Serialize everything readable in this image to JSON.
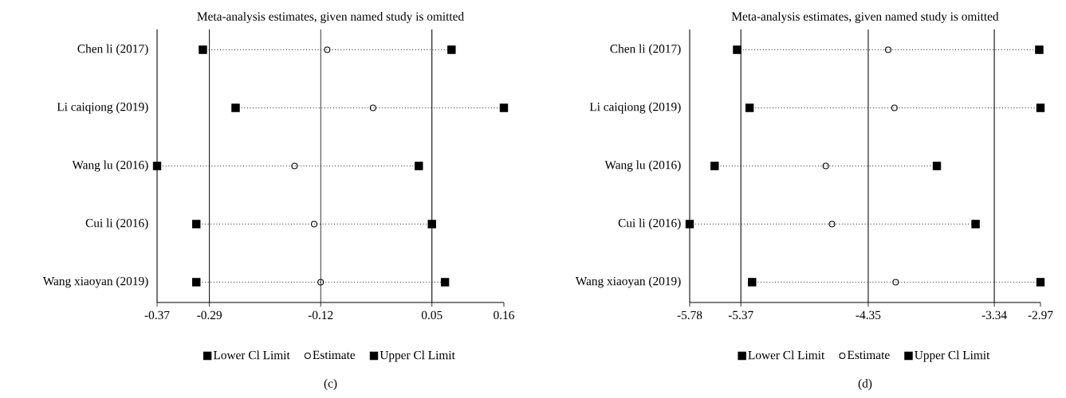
{
  "chart_data": [
    {
      "type": "scatter",
      "orientation": "horizontal",
      "title": "Meta-analysis estimates, given named study is omitted",
      "categories": [
        "Chen li (2017)",
        "Li caiqiong (2019)",
        "Wang lu (2016)",
        "Cui li (2016)",
        "Wang xiaoyan (2019)"
      ],
      "series": [
        {
          "name": "Lower Cl Limit",
          "color": "#000000",
          "values": [
            -0.3,
            -0.25,
            -0.37,
            -0.31,
            -0.31
          ]
        },
        {
          "name": "Estimate",
          "color": "#000000",
          "marker": "circle",
          "values": [
            -0.11,
            -0.04,
            -0.16,
            -0.13,
            -0.12
          ]
        },
        {
          "name": "Upper Cl Limit",
          "color": "#000000",
          "values": [
            0.08,
            0.16,
            0.03,
            0.05,
            0.07
          ]
        }
      ],
      "line_style": "dotted",
      "xlim": [
        -0.37,
        0.16
      ],
      "xticks": [
        -0.37,
        -0.29,
        -0.12,
        0.05,
        0.16
      ],
      "ref_lines": [
        {
          "axis": "x",
          "value": -0.29,
          "color": "#000000"
        },
        {
          "axis": "x",
          "value": -0.12,
          "color": "#000000"
        },
        {
          "axis": "x",
          "value": 0.05,
          "color": "#000000"
        }
      ],
      "legend": "bottom",
      "annotations": [
        "(c)"
      ]
    },
    {
      "type": "scatter",
      "orientation": "horizontal",
      "title": "Meta-analysis estimates, given named study is omitted",
      "categories": [
        "Chen li (2017)",
        "Li caiqiong (2019)",
        "Wang lu (2016)",
        "Cui li (2016)",
        "Wang xiaoyan (2019)"
      ],
      "series": [
        {
          "name": "Lower Cl Limit",
          "color": "#000000",
          "values": [
            -5.4,
            -5.3,
            -5.58,
            -5.78,
            -5.28
          ]
        },
        {
          "name": "Estimate",
          "color": "#000000",
          "marker": "circle",
          "values": [
            -4.19,
            -4.14,
            -4.69,
            -4.64,
            -4.13
          ]
        },
        {
          "name": "Upper Cl Limit",
          "color": "#000000",
          "values": [
            -2.98,
            -2.97,
            -3.8,
            -3.49,
            -2.97
          ]
        }
      ],
      "line_style": "dotted",
      "xlim": [
        -5.78,
        -2.97
      ],
      "xticks": [
        -5.78,
        -5.37,
        -4.35,
        -3.34,
        -2.97
      ],
      "ref_lines": [
        {
          "axis": "x",
          "value": -5.37,
          "color": "#000000"
        },
        {
          "axis": "x",
          "value": -4.35,
          "color": "#000000"
        },
        {
          "axis": "x",
          "value": -3.34,
          "color": "#000000"
        }
      ],
      "legend": "bottom",
      "annotations": [
        "(d)"
      ]
    }
  ]
}
